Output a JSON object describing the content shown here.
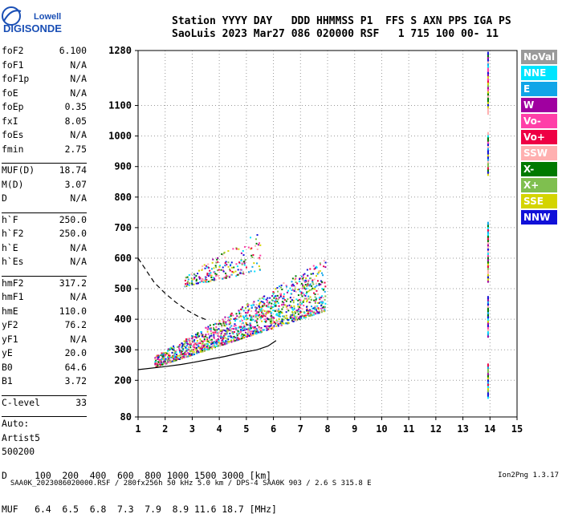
{
  "header": {
    "line1": "Station YYYY DAY   DDD HHMMSS P1  FFS S AXN PPS IGA PS",
    "line2": "SaoLuis 2023 Mar27 086 020000 RSF   1 715 100 00- 11"
  },
  "logo": {
    "line1": "Lowell",
    "line2": "DIGISONDE",
    "color": "#1a4fb5"
  },
  "params": [
    {
      "label": "foF2",
      "value": "6.100"
    },
    {
      "label": "foF1",
      "value": "N/A"
    },
    {
      "label": "foF1p",
      "value": "N/A"
    },
    {
      "label": "foE",
      "value": "N/A"
    },
    {
      "label": "foEp",
      "value": "0.35"
    },
    {
      "label": "fxI",
      "value": "8.05"
    },
    {
      "label": "foEs",
      "value": "N/A"
    },
    {
      "label": "fmin",
      "value": "2.75"
    },
    {
      "label": "MUF(D)",
      "value": "18.74",
      "sep": true
    },
    {
      "label": "M(D)",
      "value": "3.07"
    },
    {
      "label": "D",
      "value": "N/A"
    },
    {
      "label": "h`F",
      "value": "250.0",
      "sep": true
    },
    {
      "label": "h`F2",
      "value": "250.0"
    },
    {
      "label": "h`E",
      "value": "N/A"
    },
    {
      "label": "h`Es",
      "value": "N/A"
    },
    {
      "label": "hmF2",
      "value": "317.2",
      "sep": true
    },
    {
      "label": "hmF1",
      "value": "N/A"
    },
    {
      "label": "hmE",
      "value": "110.0"
    },
    {
      "label": "yF2",
      "value": "76.2"
    },
    {
      "label": "yF1",
      "value": "N/A"
    },
    {
      "label": "yE",
      "value": "20.0"
    },
    {
      "label": "B0",
      "value": "64.6"
    },
    {
      "label": "B1",
      "value": "3.72"
    },
    {
      "label": "C-level",
      "value": "33",
      "sep": true
    },
    {
      "label": "Auto:",
      "value": "",
      "sep": true
    },
    {
      "label": "Artist5",
      "value": ""
    },
    {
      "label": "500200",
      "value": ""
    }
  ],
  "legend": [
    {
      "label": "NoVal",
      "color": "#9a9a9a"
    },
    {
      "label": "NNE",
      "color": "#00e5ff"
    },
    {
      "label": "E",
      "color": "#10a5e8"
    },
    {
      "label": "W",
      "color": "#a000a0"
    },
    {
      "label": "Vo-",
      "color": "#ff3fa8"
    },
    {
      "label": "Vo+",
      "color": "#ee0044"
    },
    {
      "label": "SSW",
      "color": "#ffb0b0"
    },
    {
      "label": "X-",
      "color": "#007a00"
    },
    {
      "label": "X+",
      "color": "#7fbf4f"
    },
    {
      "label": "SSE",
      "color": "#d4d400"
    },
    {
      "label": "NNW",
      "color": "#1010d8"
    }
  ],
  "table": {
    "row1": "D     100  200  400  600  800 1000 1500 3000 [km]",
    "row2": "MUF   6.4  6.5  6.8  7.3  7.9  8.9 11.6 18.7 [MHz]"
  },
  "footer": {
    "left": "SAA0K_2023086020000.RSF / 280fx256h 50 kHz 5.0 km / DPS-4 SAA0K 903 / 2.6 S 315.8 E",
    "right": "Ion2Png 1.3.17"
  },
  "chart_data": {
    "type": "scatter",
    "x_ticks": [
      1,
      2,
      3,
      4,
      5,
      6,
      7,
      8,
      9,
      10,
      11,
      12,
      13,
      14,
      15
    ],
    "y_ticks": [
      80,
      200,
      300,
      400,
      500,
      600,
      700,
      800,
      900,
      1000,
      1100,
      1280
    ],
    "xlim": [
      1,
      15
    ],
    "ylim": [
      80,
      1280
    ],
    "grid": true,
    "traces": [
      {
        "id": "o-trace",
        "style": "solid",
        "x": [
          1.0,
          2.0,
          2.6,
          3.0,
          3.6,
          4.2,
          4.8,
          5.4,
          5.8,
          6.1
        ],
        "y": [
          235,
          245,
          252,
          258,
          268,
          278,
          290,
          300,
          312,
          330
        ]
      },
      {
        "id": "profile",
        "style": "dashed",
        "x": [
          1.0,
          1.3,
          1.6,
          2.0,
          2.4,
          2.8,
          3.2,
          3.6
        ],
        "y": [
          600,
          560,
          520,
          485,
          455,
          430,
          410,
          395
        ]
      }
    ],
    "echo_region": [
      {
        "x_start": 1.6,
        "x_end": 7.9,
        "y_low_start": 245,
        "y_low_end": 430,
        "y_high_start": 280,
        "y_high_end": 600
      },
      {
        "x_start": 2.7,
        "x_end": 5.5,
        "y_low_start": 510,
        "y_low_end": 560,
        "y_high_start": 540,
        "y_high_end": 700
      }
    ],
    "right_column": {
      "x": 13.9,
      "y_segments": [
        [
          150,
          260
        ],
        [
          350,
          480
        ],
        [
          530,
          720
        ],
        [
          880,
          1020
        ],
        [
          1080,
          1280
        ]
      ]
    }
  }
}
